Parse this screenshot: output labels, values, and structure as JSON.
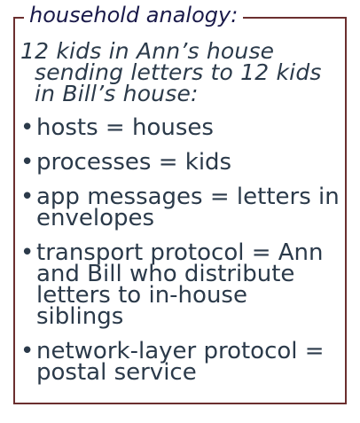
{
  "legend": "household analogy:",
  "intro": "12 kids in Ann’s house sending letters to 12 kids in Bill’s house:",
  "bullet_glyph": "•",
  "items": [
    {
      "text": "hosts = houses"
    },
    {
      "text": "processes = kids"
    },
    {
      "text": "app messages = letters in envelopes"
    },
    {
      "text": "transport protocol = Ann and Bill who distribute letters to in-house siblings"
    },
    {
      "text": "network-layer protocol = postal service"
    }
  ],
  "colors": {
    "border": "#6b2f2f",
    "legend_text": "#1a1a4a",
    "body_text": "#2b3a4a"
  }
}
